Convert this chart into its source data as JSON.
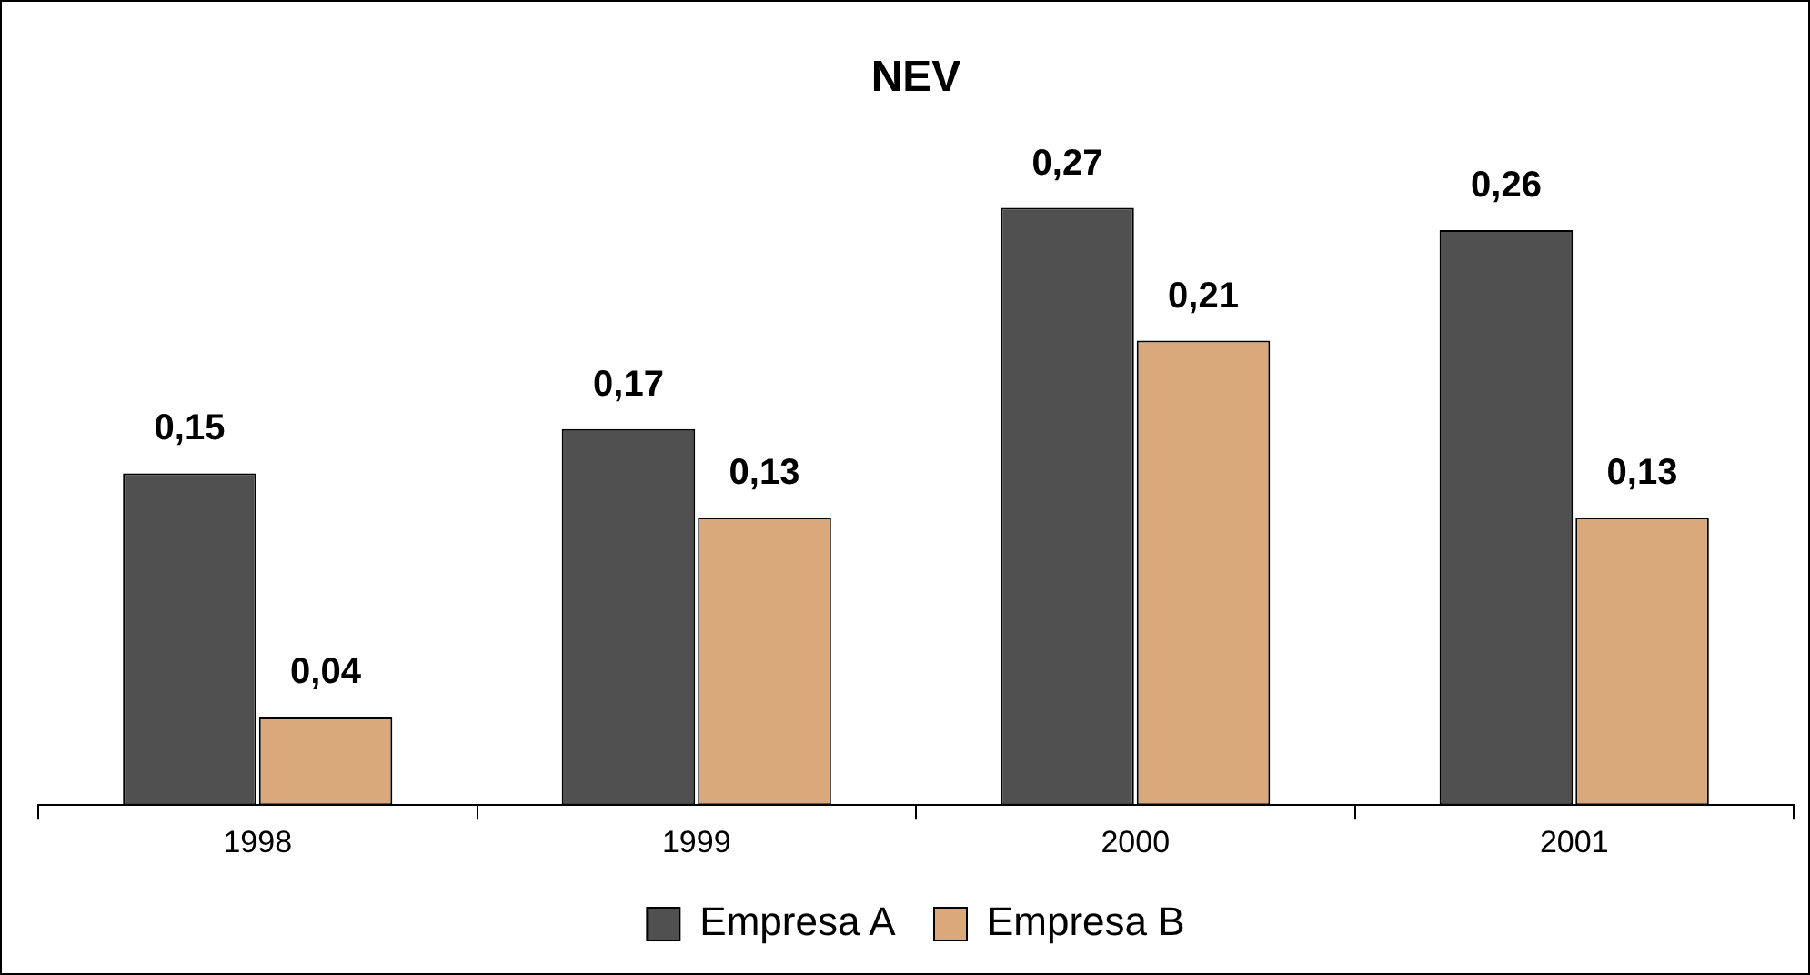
{
  "chart_data": {
    "type": "bar",
    "title": "NEV",
    "categories": [
      "1998",
      "1999",
      "2000",
      "2001"
    ],
    "series": [
      {
        "name": "Empresa A",
        "color": "#505050",
        "values": [
          0.15,
          0.17,
          0.27,
          0.26
        ],
        "value_labels": [
          "0,15",
          "0,17",
          "0,27",
          "0,26"
        ]
      },
      {
        "name": "Empresa B",
        "color": "#d9a97c",
        "values": [
          0.04,
          0.13,
          0.21,
          0.13
        ],
        "value_labels": [
          "0,04",
          "0,13",
          "0,21",
          "0,13"
        ]
      }
    ],
    "grid": false,
    "legend": "bottom"
  }
}
